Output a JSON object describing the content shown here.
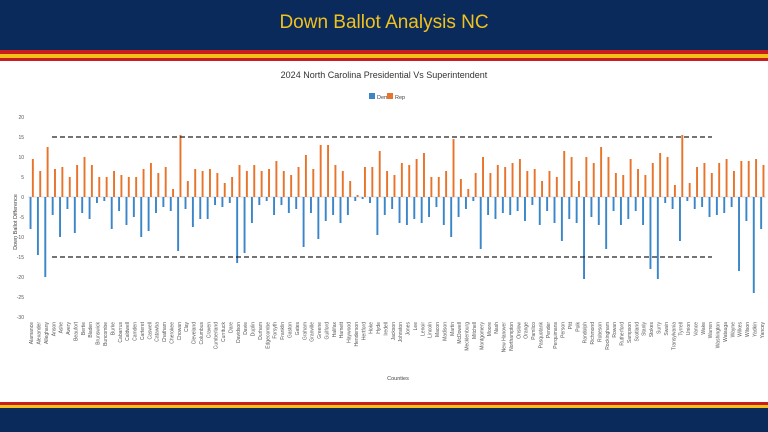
{
  "page": {
    "title": "Down Ballot Analysis NC",
    "colors": {
      "header_bg": "#0a2a5c",
      "title_color": "#f2c21a",
      "stripe_red": "#c81e1e",
      "stripe_yellow": "#f2c21a",
      "dem": "#3a86c8",
      "rep": "#e8732b"
    }
  },
  "chart_data": {
    "type": "bar",
    "title": "2024 North Carolina Presidential Vs Superintendent",
    "xlabel": "Counties",
    "ylabel": "Down Ballot Difference",
    "ylim": [
      -30,
      20
    ],
    "yticks": [
      -30,
      -25,
      -20,
      -15,
      -10,
      -5,
      0,
      5,
      10,
      15,
      20
    ],
    "grid": false,
    "legend": "top-center",
    "reference_lines": [
      15,
      -15
    ],
    "categories": [
      "Alamance",
      "Alexander",
      "Alleghany",
      "Anson",
      "Ashe",
      "Avery",
      "Beaufort",
      "Bertie",
      "Bladen",
      "Brunswick",
      "Buncombe",
      "Burke",
      "Cabarrus",
      "Caldwell",
      "Camden",
      "Carteret",
      "Caswell",
      "Catawba",
      "Chatham",
      "Cherokee",
      "Chowan",
      "Clay",
      "Cleveland",
      "Columbus",
      "Craven",
      "Cumberland",
      "Currituck",
      "Dare",
      "Davidson",
      "Davie",
      "Duplin",
      "Durham",
      "Edgecombe",
      "Forsyth",
      "Franklin",
      "Gaston",
      "Gates",
      "Graham",
      "Granville",
      "Greene",
      "Guilford",
      "Halifax",
      "Harnett",
      "Haywood",
      "Henderson",
      "Hertford",
      "Hoke",
      "Hyde",
      "Iredell",
      "Jackson",
      "Johnston",
      "Jones",
      "Lee",
      "Lenoir",
      "Lincoln",
      "Macon",
      "Madison",
      "Martin",
      "McDowell",
      "Mecklenburg",
      "Mitchell",
      "Montgomery",
      "Moore",
      "Nash",
      "New Hanover",
      "Northampton",
      "Onslow",
      "Orange",
      "Pamlico",
      "Pasquotank",
      "Pender",
      "Perquimans",
      "Person",
      "Pitt",
      "Polk",
      "Randolph",
      "Richmond",
      "Robeson",
      "Rockingham",
      "Rowan",
      "Rutherford",
      "Sampson",
      "Scotland",
      "Stanly",
      "Stokes",
      "Surry",
      "Swain",
      "Transylvania",
      "Tyrrell",
      "Union",
      "Vance",
      "Wake",
      "Warren",
      "Washington",
      "Watauga",
      "Wayne",
      "Wilkes",
      "Wilson",
      "Yadkin",
      "Yancey"
    ],
    "series": [
      {
        "name": "Dem",
        "color": "#3a86c8",
        "values": [
          -8,
          -14.5,
          -20,
          -4.5,
          -10,
          -3,
          -9,
          -4,
          -5.5,
          -1.5,
          -1,
          -8,
          -3.5,
          -7,
          -5,
          -10,
          -8.5,
          -4,
          -2.5,
          -3.5,
          -13.5,
          -3,
          -7.5,
          -5.5,
          -5.5,
          -2,
          -2.5,
          -1.5,
          -16.5,
          -14,
          -6.5,
          -2,
          -1,
          -4.5,
          -2,
          -4,
          -3,
          -12.5,
          -4,
          -10.5,
          -6,
          -4.5,
          -6.5,
          -4.5,
          -1,
          -0.5,
          -1.5,
          -9.5,
          -4.5,
          -3,
          -6.5,
          -7,
          -5.5,
          -6.5,
          -5,
          -2.5,
          -7,
          -10,
          -5,
          -3,
          -1,
          -13,
          -4.5,
          -5.5,
          -4,
          -4.5,
          -3.5,
          -6,
          -2,
          -7,
          -3.5,
          -6.5,
          -11,
          -5.5,
          -6.5,
          -20.5,
          -5,
          -7,
          -13,
          -3.5,
          -7,
          -5.5,
          -3.5,
          -7,
          -18,
          -20.5,
          -1.5,
          -3,
          -11,
          -1,
          -3,
          -2.5,
          -5,
          -4.5,
          -4,
          -2.5,
          -18.5,
          -6,
          -24,
          -8
        ]
      },
      {
        "name": "Rep",
        "color": "#e8732b",
        "values": [
          9.5,
          6.5,
          12.5,
          7,
          7.5,
          5,
          8,
          10,
          8,
          5,
          5,
          6.5,
          5.5,
          5,
          5,
          7,
          8.5,
          6,
          7.5,
          2,
          15.5,
          4,
          7,
          6.5,
          7,
          6,
          3.5,
          5,
          8,
          6.5,
          8,
          6.5,
          7,
          9,
          6.5,
          5.5,
          7.5,
          10.5,
          7,
          13,
          13,
          8,
          6.5,
          4,
          0.5,
          7.5,
          7.5,
          11.5,
          6.5,
          5.5,
          8.5,
          8,
          9.5,
          11,
          5,
          5,
          6.5,
          14.5,
          4.5,
          2,
          6,
          10,
          6,
          8,
          7.5,
          8.5,
          9.5,
          6.5,
          7,
          4,
          6.5,
          5,
          11.5,
          10,
          4,
          10,
          8.5,
          12.5,
          10,
          6,
          5.5,
          9.5,
          7,
          5.5,
          8.5,
          11,
          10,
          3,
          15.5,
          3.5,
          7.5,
          8.5,
          6,
          8.5,
          9.5,
          6.5,
          9,
          9,
          9.5,
          8
        ]
      }
    ]
  }
}
